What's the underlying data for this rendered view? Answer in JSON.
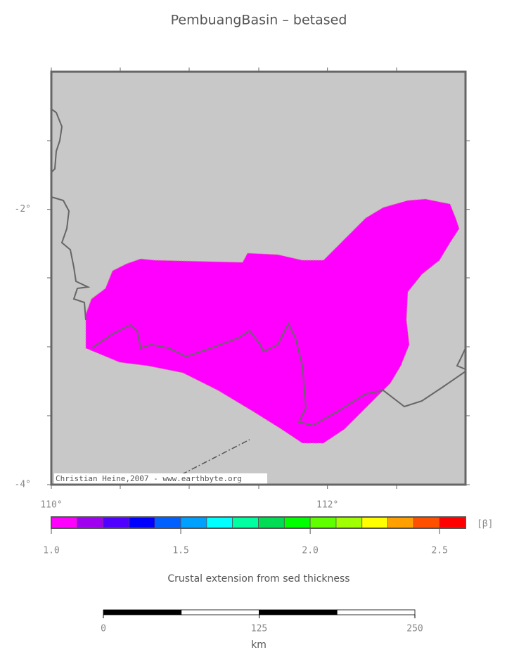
{
  "title": "PembuangBasin – betased",
  "map": {
    "lon_range": [
      110,
      113
    ],
    "lat_range": [
      -4,
      -1
    ],
    "lon_ticks": [
      {
        "value": 110,
        "label": "110°"
      },
      {
        "value": 112,
        "label": "112°"
      }
    ],
    "lat_ticks": [
      {
        "value": -2,
        "label": "-2°"
      },
      {
        "value": -4,
        "label": "-4°"
      }
    ],
    "credit": "Christian Heine,2007 - www.earthbyte.org"
  },
  "colorbar": {
    "range": [
      1.0,
      2.6
    ],
    "colors": [
      "#ff00ff",
      "#a000f0",
      "#5000ff",
      "#0000ff",
      "#0060ff",
      "#00a0ff",
      "#00ffff",
      "#00ffa0",
      "#00dd55",
      "#00ff00",
      "#60ff00",
      "#a0ff00",
      "#ffff00",
      "#ffa000",
      "#ff5000",
      "#ff0000"
    ],
    "ticks": [
      {
        "value": 1.0,
        "label": "1.0"
      },
      {
        "value": 1.5,
        "label": "1.5"
      },
      {
        "value": 2.0,
        "label": "2.0"
      },
      {
        "value": 2.5,
        "label": "2.5"
      }
    ],
    "unit": "[β]",
    "caption": "Crustal extension from sed thickness"
  },
  "scale_bar": {
    "range": [
      0,
      250
    ],
    "ticks": [
      0,
      125,
      250
    ],
    "unit": "km"
  }
}
